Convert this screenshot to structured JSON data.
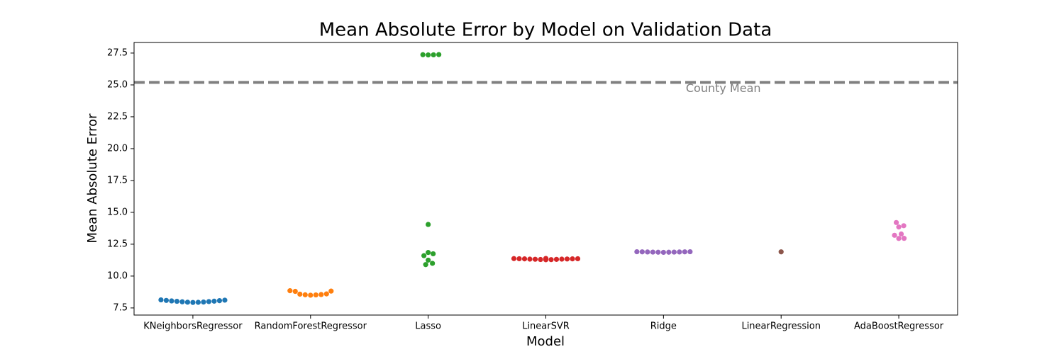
{
  "chart_data": {
    "type": "swarm",
    "title": "Mean Absolute Error by Model on Validation Data",
    "xlabel": "Model",
    "ylabel": "Mean Absolute Error",
    "categories": [
      "KNeighborsRegressor",
      "RandomForestRegressor",
      "Lasso",
      "LinearSVR",
      "Ridge",
      "LinearRegression",
      "AdaBoostRegressor"
    ],
    "colors": [
      "#1f77b4",
      "#ff7f0e",
      "#2ca02c",
      "#d62728",
      "#9467bd",
      "#8c564b",
      "#e377c2"
    ],
    "values": [
      [
        7.93,
        7.94,
        7.95,
        7.96,
        7.98,
        8.0,
        8.02,
        8.03,
        8.05,
        8.07,
        8.09,
        8.11,
        8.13
      ],
      [
        8.5,
        8.52,
        8.53,
        8.55,
        8.58,
        8.6,
        8.8,
        8.82,
        8.85
      ],
      [
        27.35,
        27.36,
        27.37,
        27.38,
        14.05,
        11.85,
        11.75,
        11.6,
        11.25,
        11.0,
        10.9
      ],
      [
        11.28,
        11.29,
        11.3,
        11.31,
        11.32,
        11.33,
        11.33,
        11.34,
        11.35,
        11.35,
        11.36,
        11.36,
        11.37,
        11.37,
        11.38
      ],
      [
        11.86,
        11.87,
        11.87,
        11.88,
        11.88,
        11.89,
        11.89,
        11.9,
        11.9,
        11.91,
        11.91
      ],
      [
        11.9
      ],
      [
        12.95,
        12.96,
        13.2,
        13.3,
        13.85,
        13.95,
        14.2
      ]
    ],
    "ylim": [
      6.94,
      28.33
    ],
    "yticks": [
      7.5,
      {
        "value": 10,
        "label": "10.0"
      },
      12.5,
      {
        "value": 15,
        "label": "15.0"
      },
      17.5,
      {
        "value": 20,
        "label": "20.0"
      },
      22.5,
      {
        "value": 25,
        "label": "25.0"
      },
      27.5
    ],
    "hline": {
      "value": 25.2,
      "label": "County Mean",
      "color": "#808080"
    }
  }
}
